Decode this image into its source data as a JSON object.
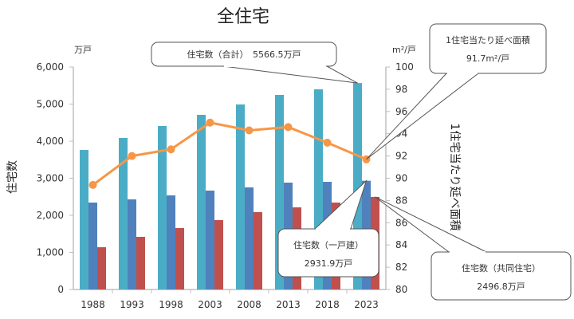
{
  "chart_data": {
    "type": "bar",
    "title": "全住宅",
    "categories": [
      "1988",
      "1993",
      "1998",
      "2003",
      "2008",
      "2013",
      "2018",
      "2023"
    ],
    "series": [
      {
        "name": "住宅数（合計）",
        "axis": "left",
        "kind": "bar",
        "color": "#4BACC6",
        "values": [
          3763,
          4086,
          4409,
          4710,
          4989,
          5247,
          5398,
          5566.5
        ]
      },
      {
        "name": "住宅数（一戸建）",
        "axis": "left",
        "kind": "bar",
        "color": "#4F81BD",
        "values": [
          2344,
          2430,
          2538,
          2667,
          2753,
          2882,
          2903,
          2931.9
        ]
      },
      {
        "name": "住宅数（共同住宅）",
        "axis": "left",
        "kind": "bar",
        "color": "#C0504D",
        "values": [
          1140,
          1420,
          1656,
          1871,
          2086,
          2215,
          2344,
          2496.8
        ]
      },
      {
        "name": "1住宅当たり延べ面積",
        "axis": "right",
        "kind": "line",
        "color": "#F79646",
        "values": [
          89.4,
          92.0,
          92.6,
          95.0,
          94.3,
          94.6,
          93.2,
          91.7
        ]
      }
    ],
    "left_axis": {
      "label": "住宅数",
      "unit": "万戸",
      "ylim": [
        0,
        6000
      ],
      "ticks": [
        "0",
        "1,000",
        "2,000",
        "3,000",
        "4,000",
        "5,000",
        "6,000"
      ]
    },
    "right_axis": {
      "label": "1住宅当たり延べ面積",
      "unit": "m²/戸",
      "ylim": [
        80,
        100
      ],
      "ticks": [
        "80",
        "82",
        "84",
        "86",
        "88",
        "90",
        "92",
        "94",
        "96",
        "98",
        "100"
      ]
    },
    "grid": false,
    "annotations": [
      {
        "target": "total-2023",
        "line1": "住宅数（合計）　5566.5万戸",
        "line2": ""
      },
      {
        "target": "area-2023",
        "line1": "1住宅当たり延べ面積",
        "line2": "91.7m²/戸"
      },
      {
        "target": "detached-2023",
        "line1": "住宅数（一戸建）",
        "line2": "2931.9万戸"
      },
      {
        "target": "apartment-2023",
        "line1": "住宅数（共同住宅）",
        "line2": "2496.8万戸"
      }
    ]
  }
}
